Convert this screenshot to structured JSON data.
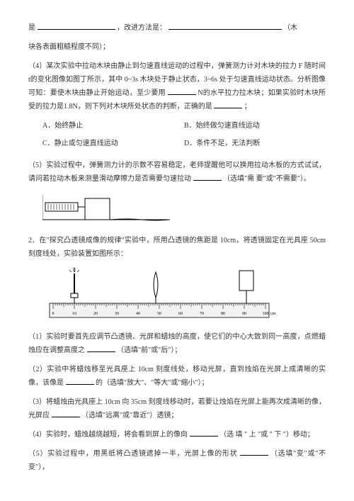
{
  "line1_a": "是",
  "line1_b": "，改进方法是：",
  "line1_c": "（木",
  "line2": "块各表面粗糙程度不同）；",
  "q4": "（4）某次实验中拉动木块由静止到匀速直线运动的过程中，弹簧测力计对木块的拉力 F 随时间 t的变化图像如图丁所示，其中 0~3s 木块处于静止状态，3~6s 处于匀速直线运动状态。分析图像可知：要使木块由静止开始运动，至少要用",
  "q4_b": "N的水平拉力拉木块；如果实验时木块所受的拉力是1.8N，则下列对木块所处状态的判断，正确的是",
  "q4_c": "；",
  "optA": "A．始终静止",
  "optB": "B．始终做匀速直线运动",
  "optC": "C．静止或匀速直线运动",
  "optD": "D．条件不足，无法判断",
  "q5": "（5）实验过程中，弹簧测力计的示数不容易稳定，老师提醒他可以换用拉动木板的方式试试，请问若拉动木板来测量滑动摩擦力是否需要匀速拉动",
  "q5_b": "（选填\"需 要\"或\"不需要\"）。",
  "p2": "2．在\"探究凸透镜成像的规律\"实验中，所用凸透镜的焦距是 10cm，将透镜固定在光具座 50cm 刻度线处，实验装置如图所示：",
  "ruler": {
    "ticks": [
      "0",
      "10",
      "20",
      "30",
      "40",
      "50",
      "60",
      "70",
      "80",
      "90",
      "100"
    ],
    "unit": "cm"
  },
  "sub1": "（1）实验时要首先应调节凸透镜、光屏和蜡烛的高度，使它们的中心大致到同一高度，点燃蜡烛应在调整高度之",
  "sub1_b": "（选填\"前\"或\"后\"）；",
  "sub2": "（2）实验中将蜡烛移至光具座上 10cm 刻度线处，移动光屏，直到烛焰在光屏上成清晰的实像，该像是",
  "sub2_b": "的（选填\"放大\"、\"等大\"或\"缩小\"）；",
  "sub3": "（3）将蜡烛由光具座上 10cm 向 35cm 刻度线移动时，若要让烛焰在光屏上能再次成清晰的像，光屏应",
  "sub3_b": "（选填\"远离\"或\"靠近\"）透镜；",
  "sub4": "（4）实验时，蜡烛越烧越短，将会看到屏上的像向",
  "sub4_b": "（选 填 \" 上 \"或 \" 下 \"）移动；",
  "sub5": "（5）实验过程中，用黑纸将凸透镜遮掉一半，光屏上像的形状",
  "sub5_b": "（选填\"变\"或\"不变\"），",
  "colors": {
    "text": "#333333",
    "line": "#000000",
    "ruler_body": "#f2f2f2"
  }
}
